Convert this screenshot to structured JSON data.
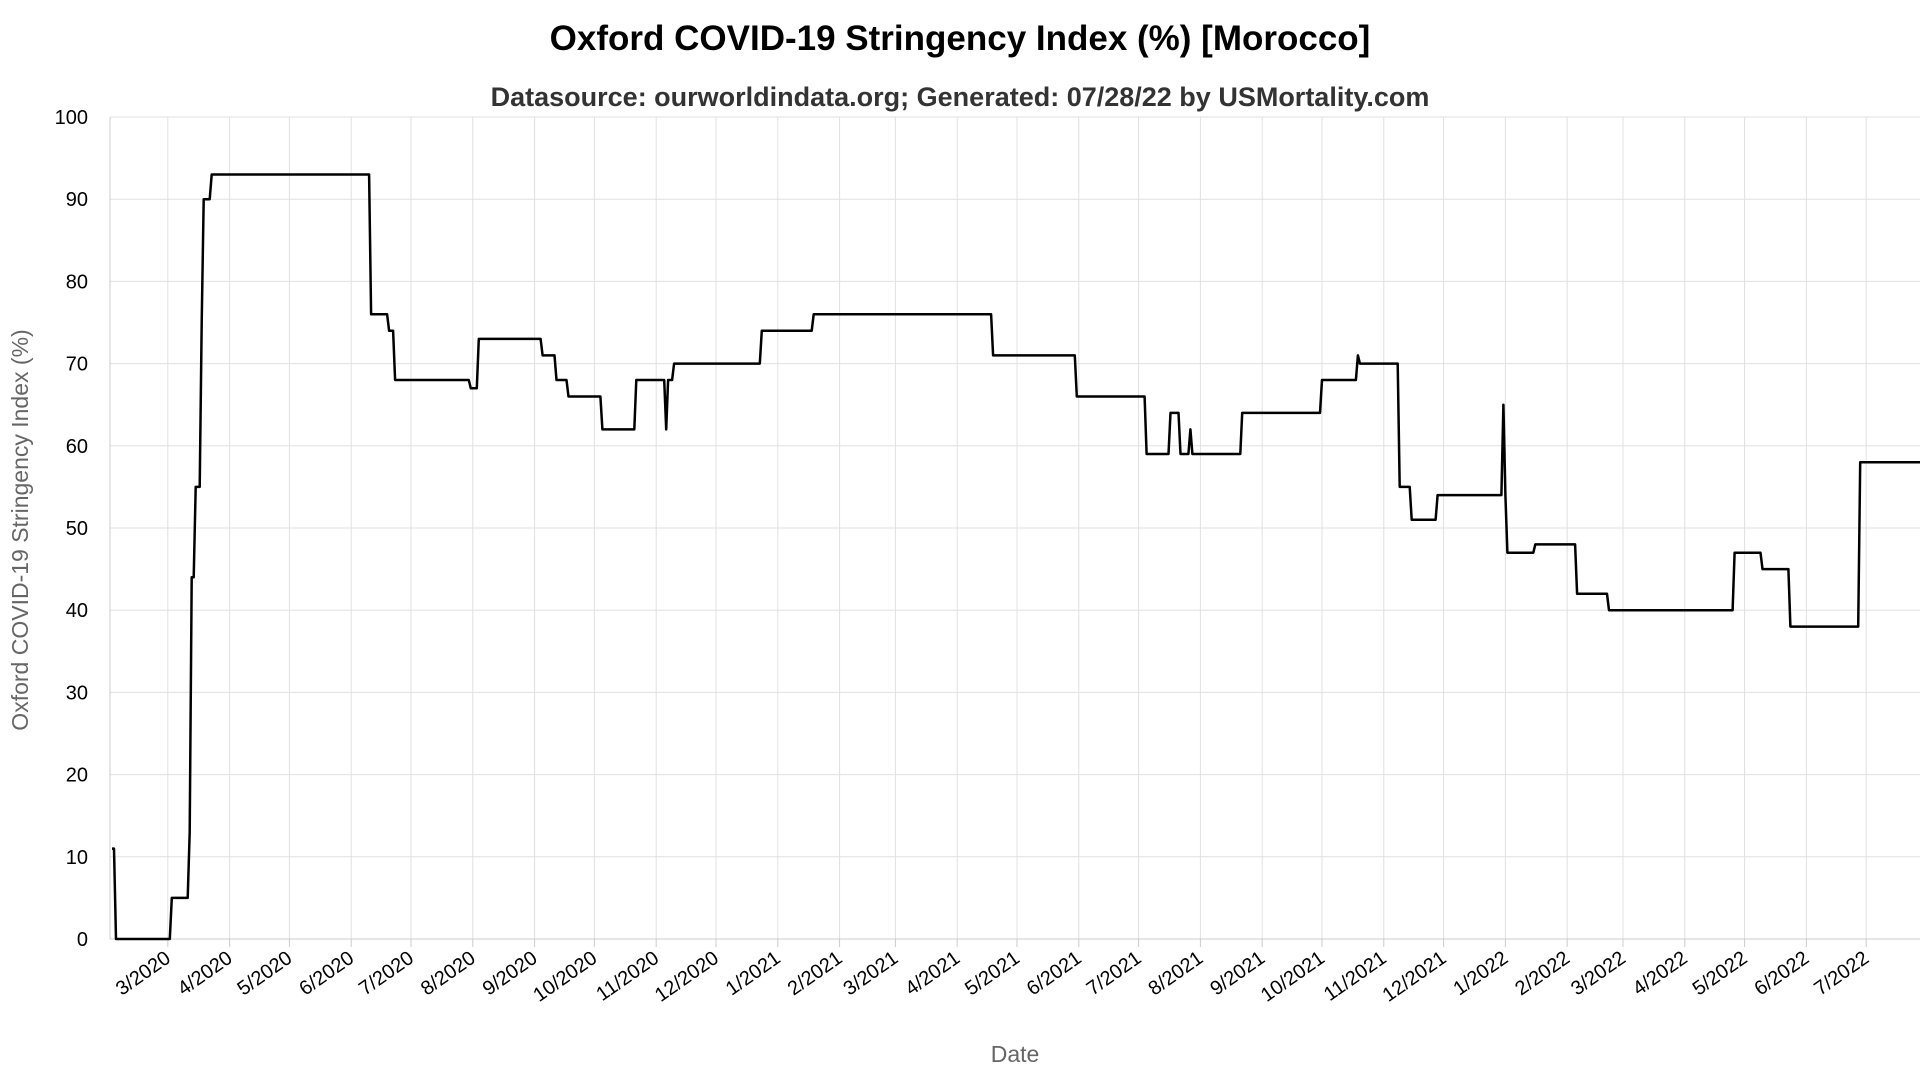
{
  "chart_data": {
    "type": "line",
    "title": "Oxford COVID-19 Stringency Index (%) [Morocco]",
    "subtitle": "Datasource: ourworldindata.org; Generated: 07/28/22 by USMortality.com",
    "xlabel": "Date",
    "ylabel": "Oxford COVID-19 Stringency Index (%)",
    "ylim": [
      0,
      100
    ],
    "yticks": [
      0,
      10,
      20,
      30,
      40,
      50,
      60,
      70,
      80,
      90,
      100
    ],
    "xlim": [
      "2020-02-01",
      "2022-07-28"
    ],
    "xticks": [
      {
        "date": "2020-03-01",
        "label": "3/2020"
      },
      {
        "date": "2020-04-01",
        "label": "4/2020"
      },
      {
        "date": "2020-05-01",
        "label": "5/2020"
      },
      {
        "date": "2020-06-01",
        "label": "6/2020"
      },
      {
        "date": "2020-07-01",
        "label": "7/2020"
      },
      {
        "date": "2020-08-01",
        "label": "8/2020"
      },
      {
        "date": "2020-09-01",
        "label": "9/2020"
      },
      {
        "date": "2020-10-01",
        "label": "10/2020"
      },
      {
        "date": "2020-11-01",
        "label": "11/2020"
      },
      {
        "date": "2020-12-01",
        "label": "12/2020"
      },
      {
        "date": "2021-01-01",
        "label": "1/2021"
      },
      {
        "date": "2021-02-01",
        "label": "2/2021"
      },
      {
        "date": "2021-03-01",
        "label": "3/2021"
      },
      {
        "date": "2021-04-01",
        "label": "4/2021"
      },
      {
        "date": "2021-05-01",
        "label": "5/2021"
      },
      {
        "date": "2021-06-01",
        "label": "6/2021"
      },
      {
        "date": "2021-07-01",
        "label": "7/2021"
      },
      {
        "date": "2021-08-01",
        "label": "8/2021"
      },
      {
        "date": "2021-09-01",
        "label": "9/2021"
      },
      {
        "date": "2021-10-01",
        "label": "10/2021"
      },
      {
        "date": "2021-11-01",
        "label": "11/2021"
      },
      {
        "date": "2021-12-01",
        "label": "12/2021"
      },
      {
        "date": "2022-01-01",
        "label": "1/2022"
      },
      {
        "date": "2022-02-01",
        "label": "2/2022"
      },
      {
        "date": "2022-03-01",
        "label": "3/2022"
      },
      {
        "date": "2022-04-01",
        "label": "4/2022"
      },
      {
        "date": "2022-05-01",
        "label": "5/2022"
      },
      {
        "date": "2022-06-01",
        "label": "6/2022"
      },
      {
        "date": "2022-07-01",
        "label": "7/2022"
      }
    ],
    "grid": true,
    "legend": "none",
    "line_color": "#000000",
    "series": [
      {
        "points": [
          [
            "2020-02-02",
            11
          ],
          [
            "2020-02-03",
            11
          ],
          [
            "2020-02-04",
            0
          ],
          [
            "2020-03-02",
            0
          ],
          [
            "2020-03-03",
            5
          ],
          [
            "2020-03-11",
            5
          ],
          [
            "2020-03-12",
            13
          ],
          [
            "2020-03-13",
            44
          ],
          [
            "2020-03-14",
            44
          ],
          [
            "2020-03-15",
            55
          ],
          [
            "2020-03-17",
            55
          ],
          [
            "2020-03-18",
            75
          ],
          [
            "2020-03-19",
            90
          ],
          [
            "2020-03-22",
            90
          ],
          [
            "2020-03-23",
            93
          ],
          [
            "2020-06-10",
            93
          ],
          [
            "2020-06-11",
            76
          ],
          [
            "2020-06-19",
            76
          ],
          [
            "2020-06-20",
            74
          ],
          [
            "2020-06-22",
            74
          ],
          [
            "2020-06-23",
            68
          ],
          [
            "2020-07-30",
            68
          ],
          [
            "2020-07-31",
            67
          ],
          [
            "2020-08-03",
            67
          ],
          [
            "2020-08-04",
            73
          ],
          [
            "2020-09-04",
            73
          ],
          [
            "2020-09-05",
            71
          ],
          [
            "2020-09-11",
            71
          ],
          [
            "2020-09-12",
            68
          ],
          [
            "2020-09-17",
            68
          ],
          [
            "2020-09-18",
            66
          ],
          [
            "2020-10-04",
            66
          ],
          [
            "2020-10-05",
            62
          ],
          [
            "2020-10-21",
            62
          ],
          [
            "2020-10-22",
            68
          ],
          [
            "2020-11-05",
            68
          ],
          [
            "2020-11-06",
            62
          ],
          [
            "2020-11-07",
            68
          ],
          [
            "2020-11-09",
            68
          ],
          [
            "2020-11-10",
            70
          ],
          [
            "2020-12-23",
            70
          ],
          [
            "2020-12-24",
            74
          ],
          [
            "2021-01-18",
            74
          ],
          [
            "2021-01-19",
            76
          ],
          [
            "2021-04-18",
            76
          ],
          [
            "2021-04-19",
            71
          ],
          [
            "2021-05-30",
            71
          ],
          [
            "2021-05-31",
            66
          ],
          [
            "2021-06-04",
            66
          ],
          [
            "2021-06-05",
            66
          ],
          [
            "2021-07-04",
            66
          ],
          [
            "2021-07-05",
            59
          ],
          [
            "2021-07-16",
            59
          ],
          [
            "2021-07-17",
            64
          ],
          [
            "2021-07-21",
            64
          ],
          [
            "2021-07-22",
            59
          ],
          [
            "2021-07-26",
            59
          ],
          [
            "2021-07-27",
            62
          ],
          [
            "2021-07-28",
            59
          ],
          [
            "2021-08-21",
            59
          ],
          [
            "2021-08-22",
            64
          ],
          [
            "2021-09-30",
            64
          ],
          [
            "2021-10-01",
            68
          ],
          [
            "2021-10-18",
            68
          ],
          [
            "2021-10-19",
            71
          ],
          [
            "2021-10-20",
            70
          ],
          [
            "2021-11-08",
            70
          ],
          [
            "2021-11-09",
            55
          ],
          [
            "2021-11-14",
            55
          ],
          [
            "2021-11-15",
            51
          ],
          [
            "2021-11-27",
            51
          ],
          [
            "2021-11-28",
            54
          ],
          [
            "2021-12-30",
            54
          ],
          [
            "2021-12-31",
            65
          ],
          [
            "2022-01-01",
            54
          ],
          [
            "2022-01-02",
            47
          ],
          [
            "2022-01-15",
            47
          ],
          [
            "2022-01-16",
            48
          ],
          [
            "2022-02-05",
            48
          ],
          [
            "2022-02-06",
            42
          ],
          [
            "2022-02-21",
            42
          ],
          [
            "2022-02-22",
            40
          ],
          [
            "2022-04-25",
            40
          ],
          [
            "2022-04-26",
            47
          ],
          [
            "2022-05-09",
            47
          ],
          [
            "2022-05-10",
            45
          ],
          [
            "2022-05-23",
            45
          ],
          [
            "2022-05-24",
            38
          ],
          [
            "2022-06-27",
            38
          ],
          [
            "2022-06-28",
            58
          ],
          [
            "2022-07-28",
            58
          ]
        ]
      }
    ]
  }
}
